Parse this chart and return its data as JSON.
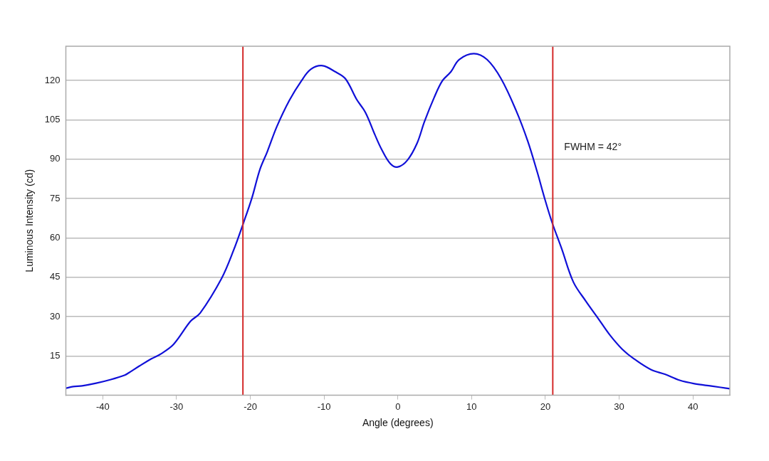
{
  "chart_data": {
    "type": "line",
    "xlabel": "Angle (degrees)",
    "ylabel": "Luminous Intensity (cd)",
    "series": [
      {
        "color": "#1010d8",
        "x": [
          -45,
          -44,
          -42.8,
          -40.9,
          -38.9,
          -37,
          -36.5,
          -35,
          -33.4,
          -32.1,
          -30.4,
          -28.1,
          -26.8,
          -23.9,
          -22.3,
          -20.9,
          -19.8,
          -18.7,
          -17.7,
          -16.4,
          -14.7,
          -13.1,
          -11.8,
          -10.2,
          -8.5,
          -7.1,
          -5.6,
          -4.4,
          -3.1,
          -2.2,
          -1,
          0,
          1.3,
          2.6,
          3.6,
          4.9,
          6,
          7.2,
          8.3,
          10.3,
          12.1,
          14,
          16,
          17.6,
          18.9,
          19.9,
          20.9,
          22.2,
          23.8,
          25.5,
          27.1,
          28.7,
          30.4,
          32,
          34.3,
          36.2,
          38.2,
          40.2,
          42.5,
          45
        ],
        "values": [
          2.7,
          3.3,
          3.6,
          4.6,
          6,
          7.7,
          8.5,
          11.2,
          13.9,
          15.8,
          19.4,
          28.2,
          31.3,
          44.5,
          55,
          65.9,
          75,
          86,
          92.8,
          102.4,
          112.4,
          119.7,
          124.2,
          125.6,
          123.3,
          120.6,
          112.8,
          107.8,
          99.2,
          93.7,
          88.2,
          87,
          89.6,
          96,
          104.2,
          113.3,
          119.7,
          123.3,
          127.9,
          130.2,
          127.9,
          120.6,
          108.7,
          96.9,
          85,
          75,
          65.9,
          55.9,
          43.1,
          35.8,
          29.5,
          23.1,
          17.6,
          13.9,
          9.8,
          8,
          5.7,
          4.4,
          3.5,
          2.5
        ]
      }
    ],
    "xlim": [
      -45,
      45
    ],
    "xticks": [
      -40,
      -30,
      -20,
      -10,
      0,
      10,
      20,
      30,
      40
    ],
    "ylim": [
      0,
      133
    ],
    "yticks": [
      15,
      30,
      45,
      60,
      75,
      90,
      105,
      120
    ],
    "grid": "y",
    "legend": false,
    "marker": "none",
    "line_style": "solid",
    "ref_lines": [
      {
        "axis": "x",
        "value": -21,
        "color": "#d42a2a"
      },
      {
        "axis": "x",
        "value": 21,
        "color": "#d42a2a"
      }
    ],
    "annotations": [
      "FWHM = 42°"
    ]
  }
}
